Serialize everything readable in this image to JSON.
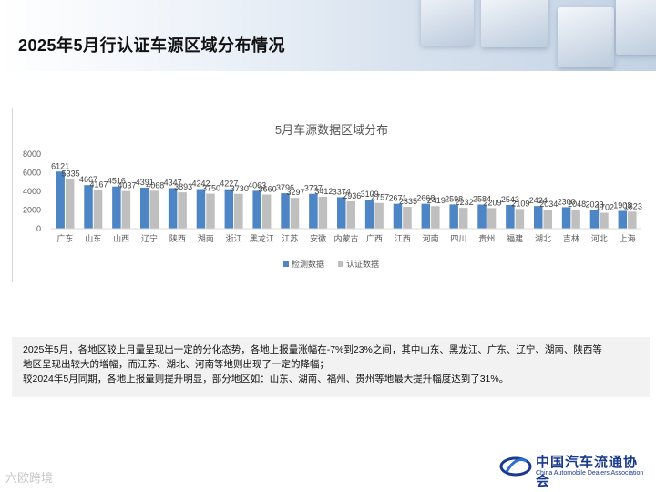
{
  "header": {
    "title": "2025年5月行认证车源区域分布情况"
  },
  "colors": {
    "series1": "#4e86c5",
    "series2": "#bfbfbf"
  },
  "chart_data": {
    "type": "bar",
    "title": "5月车源数据区域分布",
    "categories": [
      "广东",
      "山东",
      "山西",
      "辽宁",
      "陕西",
      "湖南",
      "浙江",
      "黑龙江",
      "江苏",
      "安徽",
      "内蒙古",
      "广西",
      "江西",
      "河南",
      "四川",
      "贵州",
      "福建",
      "湖北",
      "吉林",
      "河北",
      "上海"
    ],
    "series": [
      {
        "name": "检测数据",
        "values": [
          6121,
          4667,
          4516,
          4391,
          4347,
          4242,
          4227,
          4063,
          3796,
          3737,
          3374,
          3109,
          2671,
          2668,
          2598,
          2584,
          2543,
          2424,
          2300,
          2023,
          1908
        ]
      },
      {
        "name": "认证数据",
        "values": [
          5335,
          4167,
          4037,
          4068,
          3893,
          3750,
          3730,
          3660,
          3297,
          3412,
          2936,
          2757,
          2335,
          2419,
          2232,
          2209,
          2109,
          2034,
          2048,
          1702,
          1823
        ]
      }
    ],
    "y_ticks": [
      "0",
      "2000",
      "4000",
      "6000",
      "8000"
    ],
    "ylim": [
      0,
      8000
    ],
    "legend": "bottom",
    "grid": false
  },
  "notes": {
    "line1": "2025年5月，各地区较上月量呈现出一定的分化态势，各地上报量涨幅在-7%到23%之间，其中山东、黑龙江、广东、辽宁、湖南、陕西等",
    "line2": "地区呈现出较大的增幅，而江苏、湖北、河南等地则出现了一定的降幅；",
    "line3": "较2024年5月同期，各地上报量则提升明显，部分地区如：山东、湖南、福州、贵州等地最大提升幅度达到了31%。"
  },
  "logo": {
    "cn": "中国汽车流通协会",
    "en": "China Automobile Dealers Association"
  },
  "watermark": "六欧跨境"
}
